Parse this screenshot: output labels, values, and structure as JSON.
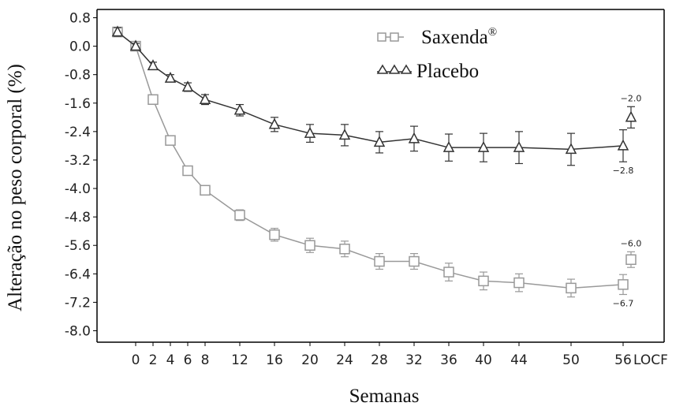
{
  "chart_data": {
    "type": "line",
    "xlabel": "Semanas",
    "ylabel": "Alteração no peso corporal (%)",
    "ylim": [
      -8.0,
      0.8
    ],
    "yticks": [
      "0.8",
      "0.0",
      "-0.8",
      "-1.6",
      "-2.4",
      "-3.2",
      "-4.0",
      "-4.8",
      "-5.6",
      "-6.4",
      "-7.2",
      "-8.0"
    ],
    "xticks": [
      "0",
      "2",
      "4",
      "6",
      "8",
      "12",
      "16",
      "20",
      "24",
      "28",
      "32",
      "36",
      "40",
      "44",
      "50",
      "56",
      "LOCF"
    ],
    "grid": false,
    "legend_position": "top-right",
    "series": [
      {
        "name": "Saxenda",
        "name_sup": "®",
        "marker": "square",
        "color": "#999999",
        "points": [
          {
            "x": "-1",
            "y": 0.4,
            "err": 0.12
          },
          {
            "x": "0",
            "y": 0.0,
            "err": 0.08
          },
          {
            "x": "2",
            "y": -1.5,
            "err": 0.1
          },
          {
            "x": "4",
            "y": -2.65,
            "err": 0.1
          },
          {
            "x": "6",
            "y": -3.5,
            "err": 0.1
          },
          {
            "x": "8",
            "y": -4.05,
            "err": 0.12
          },
          {
            "x": "12",
            "y": -4.75,
            "err": 0.15
          },
          {
            "x": "16",
            "y": -5.3,
            "err": 0.18
          },
          {
            "x": "20",
            "y": -5.6,
            "err": 0.2
          },
          {
            "x": "24",
            "y": -5.7,
            "err": 0.22
          },
          {
            "x": "28",
            "y": -6.05,
            "err": 0.22
          },
          {
            "x": "32",
            "y": -6.05,
            "err": 0.22
          },
          {
            "x": "36",
            "y": -6.35,
            "err": 0.25
          },
          {
            "x": "40",
            "y": -6.6,
            "err": 0.25
          },
          {
            "x": "44",
            "y": -6.65,
            "err": 0.25
          },
          {
            "x": "50",
            "y": -6.8,
            "err": 0.25
          },
          {
            "x": "56",
            "y": -6.7,
            "err": 0.28
          }
        ],
        "locf": {
          "y": -6.0,
          "err": 0.22
        },
        "locf_label": "−6.0",
        "week56_label": "−6.7"
      },
      {
        "name": "Placebo",
        "marker": "triangle",
        "color": "#333333",
        "points": [
          {
            "x": "-1",
            "y": 0.4,
            "err": 0.12
          },
          {
            "x": "0",
            "y": 0.0,
            "err": 0.08
          },
          {
            "x": "2",
            "y": -0.55,
            "err": 0.1
          },
          {
            "x": "4",
            "y": -0.9,
            "err": 0.1
          },
          {
            "x": "6",
            "y": -1.15,
            "err": 0.12
          },
          {
            "x": "8",
            "y": -1.5,
            "err": 0.14
          },
          {
            "x": "12",
            "y": -1.8,
            "err": 0.16
          },
          {
            "x": "16",
            "y": -2.2,
            "err": 0.2
          },
          {
            "x": "20",
            "y": -2.45,
            "err": 0.25
          },
          {
            "x": "24",
            "y": -2.5,
            "err": 0.3
          },
          {
            "x": "28",
            "y": -2.7,
            "err": 0.3
          },
          {
            "x": "32",
            "y": -2.6,
            "err": 0.35
          },
          {
            "x": "36",
            "y": -2.85,
            "err": 0.38
          },
          {
            "x": "40",
            "y": -2.85,
            "err": 0.4
          },
          {
            "x": "44",
            "y": -2.85,
            "err": 0.45
          },
          {
            "x": "50",
            "y": -2.9,
            "err": 0.45
          },
          {
            "x": "56",
            "y": -2.8,
            "err": 0.45
          }
        ],
        "locf": {
          "y": -2.0,
          "err": 0.3
        },
        "locf_label": "−2.0",
        "week56_label": "−2.8"
      }
    ]
  }
}
